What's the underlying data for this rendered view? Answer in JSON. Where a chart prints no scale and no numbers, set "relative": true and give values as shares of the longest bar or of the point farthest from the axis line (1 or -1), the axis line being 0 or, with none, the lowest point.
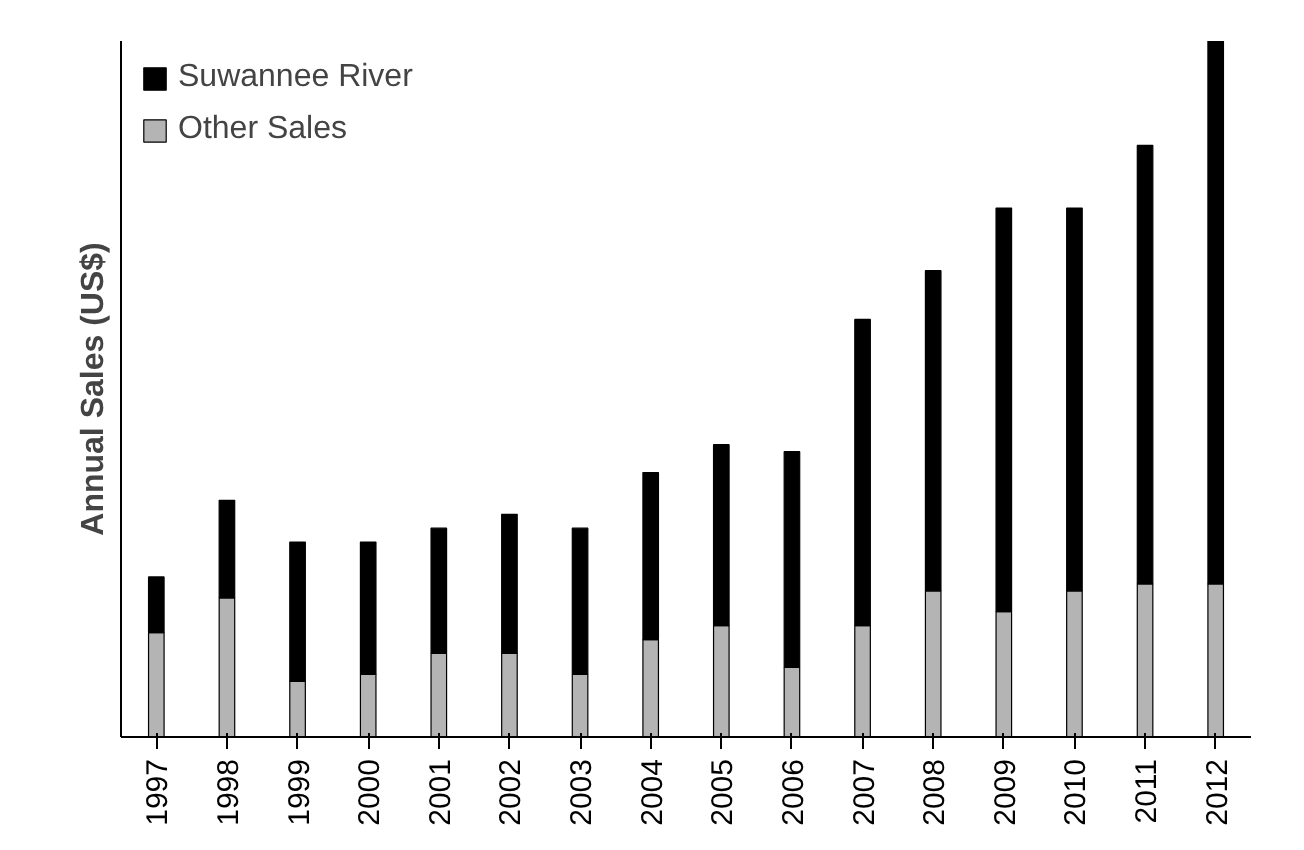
{
  "chart_data": {
    "type": "bar",
    "stacked": true,
    "relative": true,
    "ylabel": "Annual Sales (US$)",
    "categories": [
      "1997",
      "1998",
      "1999",
      "2000",
      "2001",
      "2002",
      "2003",
      "2004",
      "2005",
      "2006",
      "2007",
      "2008",
      "2009",
      "2010",
      "2011",
      "2012"
    ],
    "series": [
      {
        "name": "Other Sales",
        "color": "#b4b4b4",
        "values": [
          0.15,
          0.2,
          0.08,
          0.09,
          0.12,
          0.12,
          0.09,
          0.14,
          0.16,
          0.1,
          0.16,
          0.21,
          0.18,
          0.21,
          0.22,
          0.22
        ]
      },
      {
        "name": "Suwannee River",
        "color": "#000000",
        "values": [
          0.08,
          0.14,
          0.2,
          0.19,
          0.18,
          0.2,
          0.21,
          0.24,
          0.26,
          0.31,
          0.44,
          0.46,
          0.58,
          0.55,
          0.63,
          0.78
        ]
      }
    ],
    "legend": "top left",
    "grid": false
  }
}
